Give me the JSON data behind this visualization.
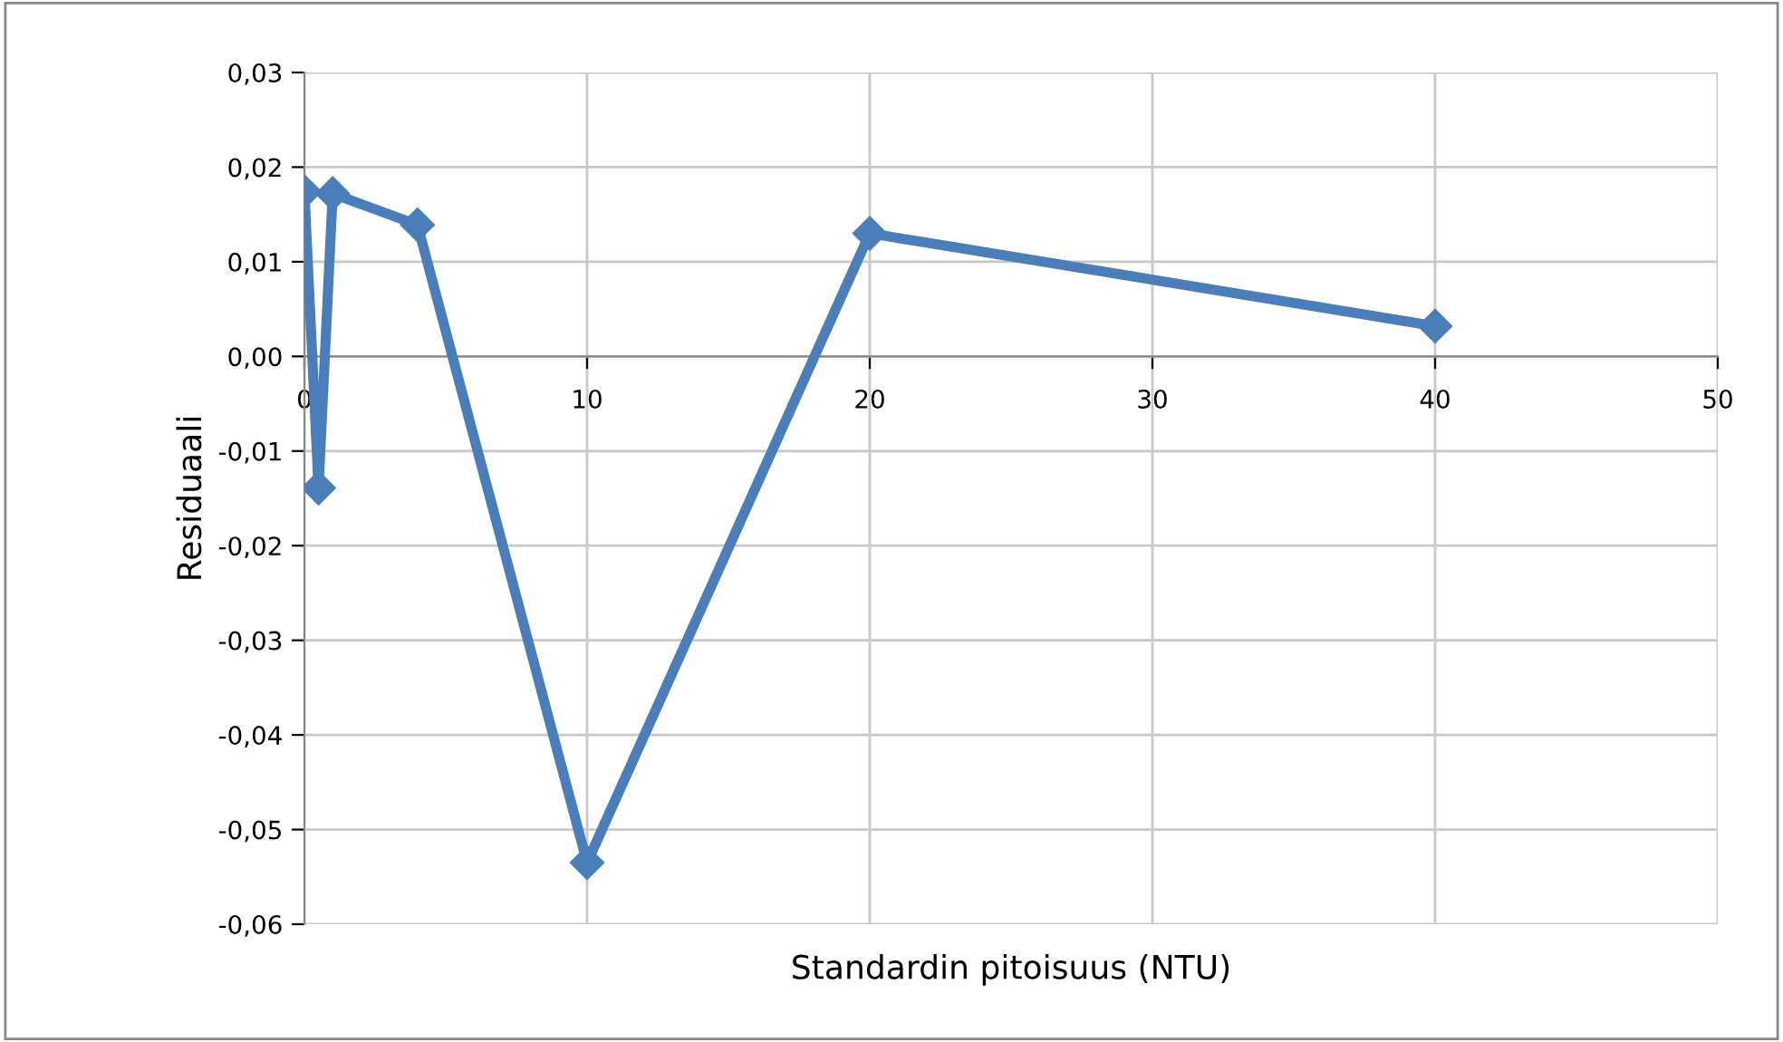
{
  "chart_data": {
    "type": "line",
    "xlabel": "Standardin pitoisuus (NTU)",
    "ylabel": "Residuaali",
    "x": [
      0,
      0.5,
      1,
      4,
      10,
      20,
      40
    ],
    "series": [
      {
        "color": "#4a7ebb",
        "values": [
          0.0174,
          -0.0139,
          0.0172,
          0.0139,
          -0.0535,
          0.013,
          0.0032
        ]
      }
    ],
    "xlim": [
      0,
      50
    ],
    "xticks": [
      0,
      10,
      20,
      30,
      40,
      50
    ],
    "ylim": [
      -0.06,
      0.03
    ],
    "yticks": [
      {
        "value": -0.06,
        "label": "-0,06"
      },
      {
        "value": -0.05,
        "label": "-0,05"
      },
      {
        "value": -0.04,
        "label": "-0,04"
      },
      {
        "value": -0.03,
        "label": "-0,03"
      },
      {
        "value": -0.02,
        "label": "-0,02"
      },
      {
        "value": -0.01,
        "label": "-0,01"
      },
      {
        "value": 0,
        "label": "0,00"
      },
      {
        "value": 0.01,
        "label": "0,01"
      },
      {
        "value": 0.02,
        "label": "0,02"
      },
      {
        "value": 0.03,
        "label": "0,03"
      }
    ],
    "grid": true,
    "marker": "diamond",
    "line_style": "solid",
    "legend": false
  }
}
